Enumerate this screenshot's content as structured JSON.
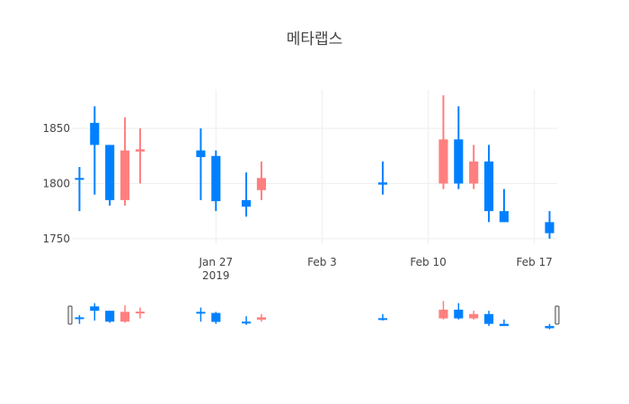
{
  "chart_data": {
    "type": "candlestick",
    "title": "메타랩스",
    "increasing_color": "#ff7f7f",
    "decreasing_color": "#0080ff",
    "xlabel": "",
    "ylabel": "",
    "ylim": [
      1745,
      1885
    ],
    "xlim": [
      "2019-01-18",
      "2019-02-18"
    ],
    "grid": true,
    "rangeslider": true,
    "y_ticks": [
      1750,
      1800,
      1850
    ],
    "x_ticks": [
      {
        "date": "2019-01-27",
        "label": "Jan 27",
        "sublabel": "2019"
      },
      {
        "date": "2019-02-03",
        "label": "Feb 3",
        "sublabel": ""
      },
      {
        "date": "2019-02-10",
        "label": "Feb 10",
        "sublabel": ""
      },
      {
        "date": "2019-02-17",
        "label": "Feb 17",
        "sublabel": ""
      }
    ],
    "candles": [
      {
        "date": "2019-01-18",
        "open": 1805,
        "high": 1815,
        "low": 1775,
        "close": 1805
      },
      {
        "date": "2019-01-19",
        "open": 1855,
        "high": 1870,
        "low": 1790,
        "close": 1835
      },
      {
        "date": "2019-01-20",
        "open": 1835,
        "high": 1835,
        "low": 1780,
        "close": 1785
      },
      {
        "date": "2019-01-21",
        "open": 1785,
        "high": 1860,
        "low": 1780,
        "close": 1830
      },
      {
        "date": "2019-01-22",
        "open": 1829,
        "high": 1850,
        "low": 1800,
        "close": 1831
      },
      {
        "date": "2019-01-23",
        "open": null,
        "high": null,
        "low": null,
        "close": null
      },
      {
        "date": "2019-01-24",
        "open": null,
        "high": null,
        "low": null,
        "close": null
      },
      {
        "date": "2019-01-25",
        "open": null,
        "high": null,
        "low": null,
        "close": null
      },
      {
        "date": "2019-01-26",
        "open": 1830,
        "high": 1850,
        "low": 1785,
        "close": 1824
      },
      {
        "date": "2019-01-27",
        "open": 1825,
        "high": 1830,
        "low": 1775,
        "close": 1784
      },
      {
        "date": "2019-01-28",
        "open": null,
        "high": null,
        "low": null,
        "close": null
      },
      {
        "date": "2019-01-29",
        "open": 1785,
        "high": 1810,
        "low": 1770,
        "close": 1779
      },
      {
        "date": "2019-01-30",
        "open": 1794,
        "high": 1820,
        "low": 1785,
        "close": 1805
      },
      {
        "date": "2019-02-07",
        "open": 1801,
        "high": 1820,
        "low": 1790,
        "close": 1799
      },
      {
        "date": "2019-02-11",
        "open": 1800,
        "high": 1880,
        "low": 1795,
        "close": 1840
      },
      {
        "date": "2019-02-12",
        "open": 1840,
        "high": 1870,
        "low": 1795,
        "close": 1800
      },
      {
        "date": "2019-02-13",
        "open": 1800,
        "high": 1835,
        "low": 1795,
        "close": 1820
      },
      {
        "date": "2019-02-14",
        "open": 1820,
        "high": 1835,
        "low": 1765,
        "close": 1775
      },
      {
        "date": "2019-02-15",
        "open": 1775,
        "high": 1795,
        "low": 1765,
        "close": 1765
      },
      {
        "date": "2019-02-18",
        "open": 1765,
        "high": 1775,
        "low": 1750,
        "close": 1755
      }
    ]
  }
}
